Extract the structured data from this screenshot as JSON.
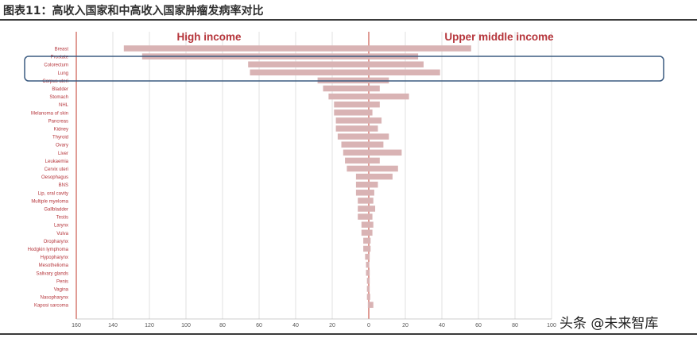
{
  "figure_title": "图表11：高收入国家和中高收入国家肿瘤发病率对比",
  "watermark": "头条 @未来智库",
  "colors": {
    "bar": "#d9b3b4",
    "accent_red": "#c0392b",
    "label_red": "#b5343a",
    "highlight_box": "#3b5b80",
    "grid": "#e2e2e2"
  },
  "chart_data": {
    "type": "bar",
    "orientation": "horizontal-diverging",
    "categories": [
      "Breast",
      "Prostate",
      "Colorectum",
      "Lung",
      "Corpus uteri",
      "Bladder",
      "Stomach",
      "NHL",
      "Melanoma of skin",
      "Pancreas",
      "Kidney",
      "Thyroid",
      "Ovary",
      "Liver",
      "Leukaemia",
      "Cervix uteri",
      "Oesophagus",
      "BNS",
      "Lip, oral cavity",
      "Multiple myeloma",
      "Gallbladder",
      "Testis",
      "Larynx",
      "Vulva",
      "Oropharynx",
      "Hodgkin lymphoma",
      "Hypopharynx",
      "Mesothelioma",
      "Salivary glands",
      "Penis",
      "Vagina",
      "Nasopharynx",
      "Kaposi sarcoma"
    ],
    "series": [
      {
        "name": "High income",
        "side": "left",
        "values": [
          134,
          124,
          66,
          65,
          28,
          25,
          22,
          19,
          19,
          18,
          18,
          17,
          15,
          14,
          13,
          12,
          7,
          7,
          7,
          6,
          6,
          6,
          4,
          4,
          3,
          3,
          2,
          1.5,
          1.5,
          1,
          1,
          1,
          0.5
        ]
      },
      {
        "name": "Upper middle income",
        "side": "right",
        "values": [
          56,
          27,
          30,
          39,
          11,
          6,
          22,
          6,
          2,
          7,
          5,
          11,
          8,
          18,
          6,
          16,
          13,
          5,
          3,
          2.5,
          3.5,
          2,
          2.5,
          2,
          1,
          1,
          0.5,
          0.3,
          0.5,
          0.5,
          0.5,
          0.8,
          2.5
        ]
      }
    ],
    "x_ticks": [
      "160",
      "140",
      "120",
      "100",
      "80",
      "60",
      "40",
      "20",
      "0",
      "20",
      "40",
      "60",
      "80",
      "100"
    ],
    "xlim_left": 160,
    "xlim_right": 100,
    "grid": true,
    "highlighted_categories": [
      "Prostate",
      "Colorectum",
      "Lung"
    ]
  }
}
